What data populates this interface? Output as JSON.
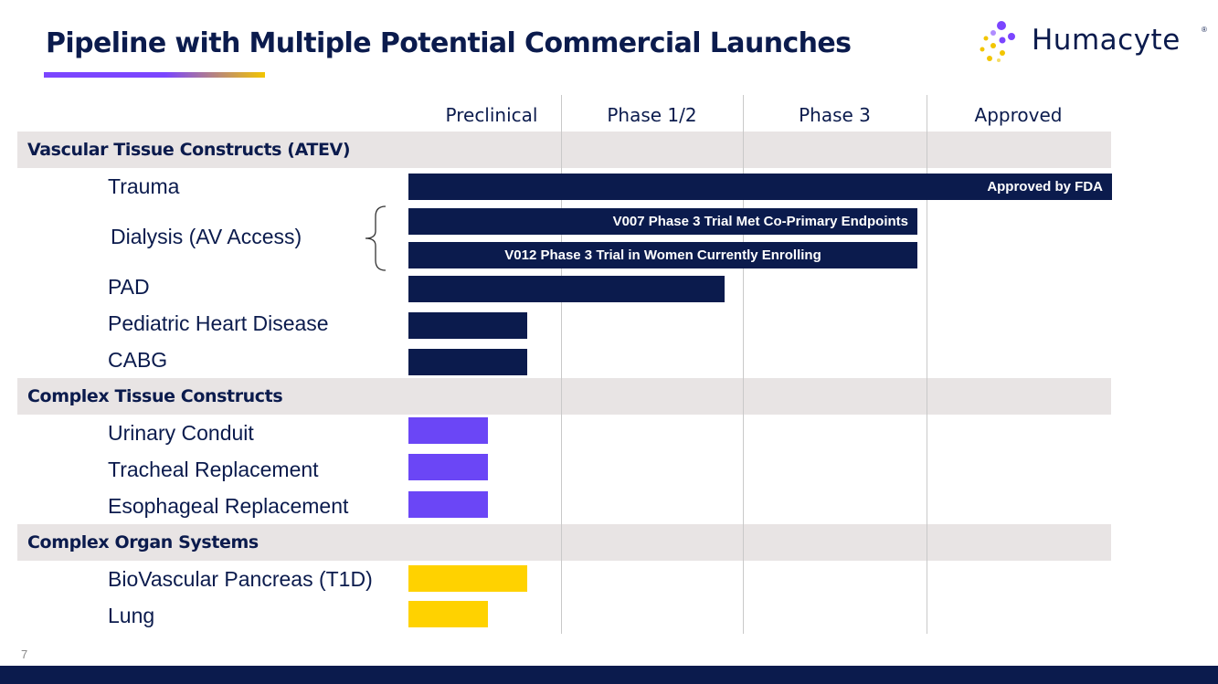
{
  "slide": {
    "title": "Pipeline with Multiple Potential Commercial Launches",
    "page_number": "7"
  },
  "logo": {
    "text": "Humacyte",
    "mark": "®",
    "colors": {
      "purple": "#7b45ff",
      "yellow": "#f2c500",
      "navy": "#0b1b4d"
    }
  },
  "colors": {
    "navy": "#0b1b4d",
    "purple": "#6b46f6",
    "yellow": "#ffd200",
    "band": "#e8e4e4"
  },
  "stages": [
    "Preclinical",
    "Phase 1/2",
    "Phase 3",
    "Approved"
  ],
  "sections": [
    {
      "label": "Vascular Tissue Constructs (ATEV)",
      "rows": [
        {
          "label": "Trauma",
          "progress_stages": 4.0,
          "bar_text": "Approved by FDA"
        },
        {
          "label": "Dialysis (AV Access)",
          "sub_bars": [
            {
              "progress_stages": 2.95,
              "bar_text": "V007 Phase 3 Trial Met Co-Primary Endpoints"
            },
            {
              "progress_stages": 2.95,
              "bar_text": "V012 Phase 3 Trial in Women Currently Enrolling"
            }
          ]
        },
        {
          "label": "PAD",
          "progress_stages": 1.9,
          "bar_text": ""
        },
        {
          "label": "Pediatric Heart Disease",
          "progress_stages": 0.78,
          "bar_text": ""
        },
        {
          "label": "CABG",
          "progress_stages": 0.78,
          "bar_text": ""
        }
      ]
    },
    {
      "label": "Complex Tissue Constructs",
      "rows": [
        {
          "label": "Urinary Conduit",
          "progress_stages": 0.52,
          "bar_text": ""
        },
        {
          "label": "Tracheal Replacement",
          "progress_stages": 0.52,
          "bar_text": ""
        },
        {
          "label": "Esophageal Replacement",
          "progress_stages": 0.52,
          "bar_text": ""
        }
      ]
    },
    {
      "label": "Complex Organ Systems",
      "rows": [
        {
          "label": "BioVascular Pancreas (T1D)",
          "progress_stages": 0.78,
          "bar_text": ""
        },
        {
          "label": "Lung",
          "progress_stages": 0.52,
          "bar_text": ""
        }
      ]
    }
  ]
}
